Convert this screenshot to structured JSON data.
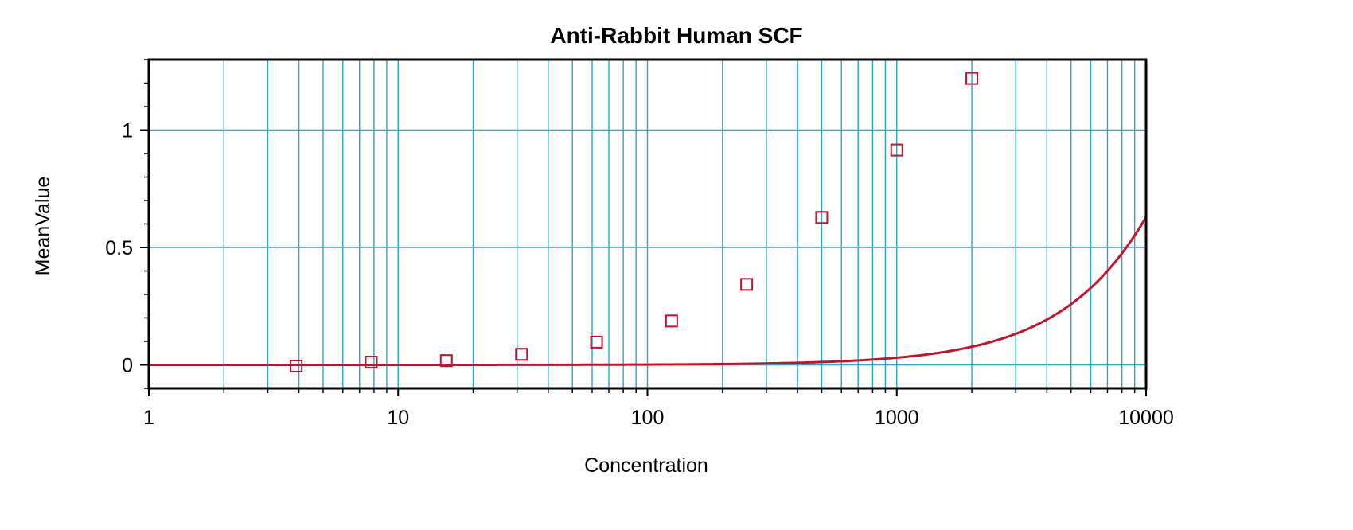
{
  "chart_data": {
    "type": "scatter",
    "title": "Anti-Rabbit Human SCF",
    "xlabel": "Concentration",
    "ylabel": "MeanValue",
    "x_scale": "log",
    "xlim": [
      1,
      10000
    ],
    "ylim": [
      -0.1,
      1.3
    ],
    "x_ticks": [
      "1",
      "10",
      "100",
      "1000",
      "10000"
    ],
    "y_ticks": [
      "0",
      "0.5",
      "1"
    ],
    "grid": true,
    "legend": "none",
    "series": [
      {
        "marker": "open-square",
        "x": [
          3.9,
          7.8,
          15.6,
          31.25,
          62.5,
          125,
          250,
          500,
          1000,
          2000
        ],
        "y": [
          -0.005,
          0.012,
          0.018,
          0.045,
          0.097,
          0.187,
          0.343,
          0.628,
          0.915,
          1.22
        ]
      }
    ],
    "fit_curve": {
      "type": "4PL",
      "min": 0.0,
      "max": 10.0,
      "ec50": 75000,
      "slope": 1.34
    },
    "colors": {
      "data": "#c8102e",
      "grid": "#2aa5c8",
      "frame": "#000000"
    }
  }
}
